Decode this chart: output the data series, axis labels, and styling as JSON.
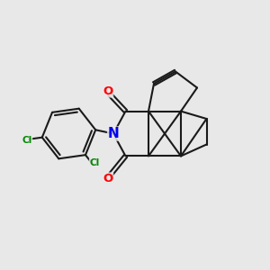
{
  "bg_color": "#e8e8e8",
  "line_color": "#1a1a1a",
  "N_color": "#0000ee",
  "O_color": "#ff0000",
  "Cl_color": "#008800",
  "lw": 1.5,
  "fig_w": 3.0,
  "fig_h": 3.0,
  "dpi": 100,
  "xlim": [
    0,
    10
  ],
  "ylim": [
    0,
    10
  ]
}
